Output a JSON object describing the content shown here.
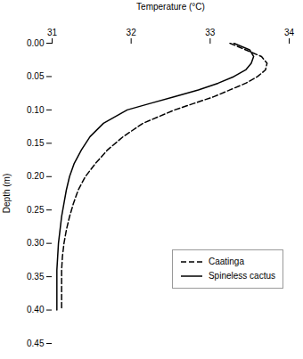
{
  "chart_data": {
    "type": "line",
    "xlabel": "Temperature (°C)",
    "ylabel": "Depth (m)",
    "xlim": [
      31,
      34
    ],
    "ylim": [
      0.45,
      0.0
    ],
    "xticks": [
      31,
      32,
      33,
      34
    ],
    "yticks": [
      {
        "value": 0.0,
        "label": "0.00"
      },
      {
        "value": 0.05,
        "label": "0.05"
      },
      {
        "value": 0.1,
        "label": "0.10"
      },
      {
        "value": 0.15,
        "label": "0.15"
      },
      {
        "value": 0.2,
        "label": "0.20"
      },
      {
        "value": 0.25,
        "label": "0.25"
      },
      {
        "value": 0.3,
        "label": "0.30"
      },
      {
        "value": 0.35,
        "label": "0.35"
      },
      {
        "value": 0.4,
        "label": "0.40"
      },
      {
        "value": 0.45,
        "label": "0.45"
      }
    ],
    "legend": "lower right",
    "series": [
      {
        "name": "Caatinga",
        "color": "#000000",
        "line_style": "dashed",
        "x": [
          33.25,
          33.45,
          33.65,
          33.72,
          33.7,
          33.6,
          33.45,
          33.25,
          33.05,
          32.8,
          32.55,
          32.15,
          31.9,
          31.7,
          31.55,
          31.42,
          31.33,
          31.27,
          31.22,
          31.18,
          31.15,
          31.13,
          31.12,
          31.12,
          31.12,
          31.12
        ],
        "values": [
          0.0,
          0.01,
          0.02,
          0.03,
          0.04,
          0.05,
          0.06,
          0.07,
          0.08,
          0.09,
          0.1,
          0.12,
          0.14,
          0.16,
          0.18,
          0.2,
          0.22,
          0.24,
          0.26,
          0.28,
          0.3,
          0.32,
          0.34,
          0.36,
          0.38,
          0.4
        ]
      },
      {
        "name": "Spineless cactus",
        "color": "#000000",
        "line_style": "solid",
        "x": [
          33.3,
          33.5,
          33.55,
          33.52,
          33.45,
          33.3,
          33.1,
          32.85,
          32.55,
          32.25,
          31.95,
          31.65,
          31.48,
          31.37,
          31.28,
          31.22,
          31.18,
          31.15,
          31.12,
          31.1,
          31.08,
          31.07,
          31.06,
          31.06,
          31.06,
          31.06
        ],
        "values": [
          0.0,
          0.01,
          0.02,
          0.03,
          0.04,
          0.05,
          0.06,
          0.07,
          0.08,
          0.09,
          0.1,
          0.12,
          0.14,
          0.16,
          0.18,
          0.2,
          0.22,
          0.24,
          0.26,
          0.28,
          0.3,
          0.32,
          0.34,
          0.36,
          0.38,
          0.4
        ]
      }
    ]
  }
}
